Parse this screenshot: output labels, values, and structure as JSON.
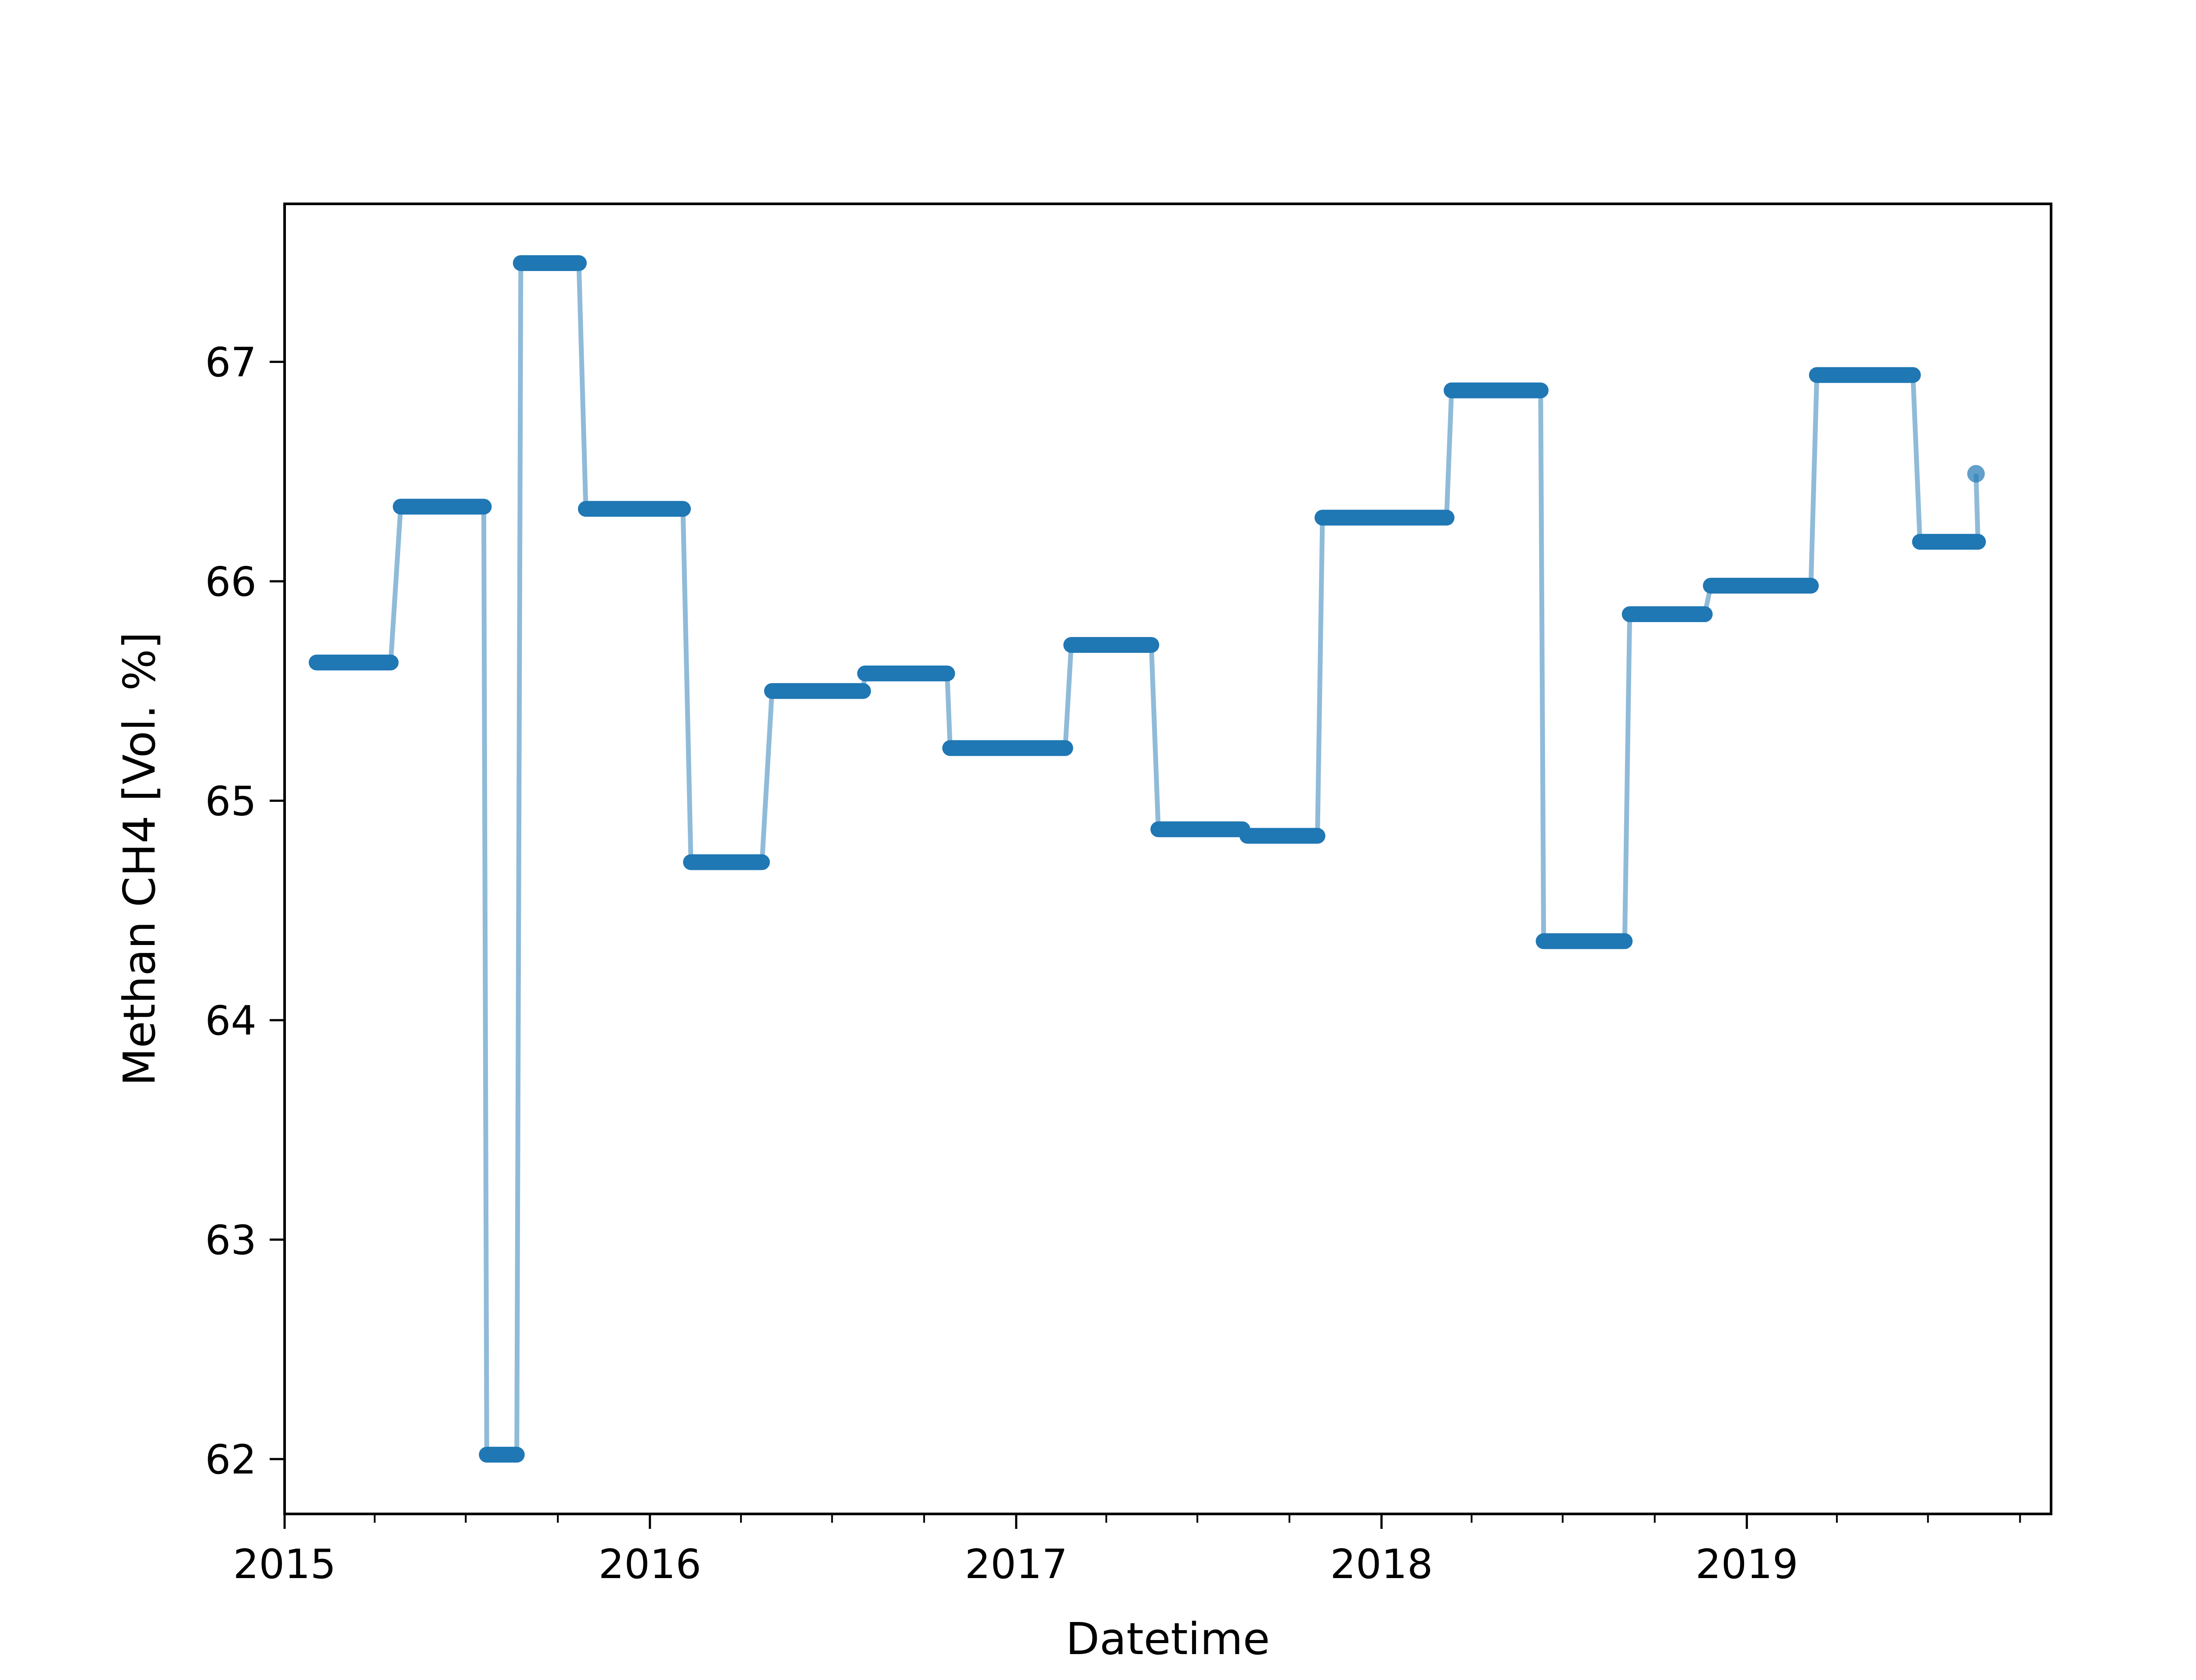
{
  "chart_data": {
    "type": "line",
    "title": "",
    "xlabel": "Datetime",
    "ylabel": "Methan CH4  [Vol. %]",
    "x_axis": {
      "kind": "date",
      "range": [
        "2015-01-01",
        "2019-11-01"
      ],
      "major_ticks": [
        "2015-01-01",
        "2016-01-01",
        "2017-01-01",
        "2018-01-01",
        "2019-01-01"
      ],
      "major_tick_labels": [
        "2015",
        "2016",
        "2017",
        "2018",
        "2019"
      ],
      "minor_ticks": [
        "2015-04-01",
        "2015-07-01",
        "2015-10-01",
        "2016-04-01",
        "2016-07-01",
        "2016-10-01",
        "2017-04-01",
        "2017-07-01",
        "2017-10-01",
        "2018-04-01",
        "2018-07-01",
        "2018-10-01",
        "2019-04-01",
        "2019-07-01",
        "2019-10-01"
      ]
    },
    "y_axis": {
      "range": [
        61.75,
        67.72
      ],
      "ticks": [
        62,
        63,
        64,
        65,
        66,
        67
      ],
      "tick_labels": [
        "62",
        "63",
        "64",
        "65",
        "66",
        "67"
      ]
    },
    "grid": false,
    "legend": "none",
    "colors": {
      "marker": "#1f77b4",
      "line": "#1f77b4",
      "line_opacity": 0.5
    },
    "series": [
      {
        "segments": [
          {
            "start": "2015-02-02",
            "end": "2015-04-17",
            "value": 65.63
          },
          {
            "start": "2015-04-27",
            "end": "2015-07-19",
            "value": 66.34
          },
          {
            "start": "2015-07-22",
            "end": "2015-08-21",
            "value": 62.02
          },
          {
            "start": "2015-08-25",
            "end": "2015-10-22",
            "value": 67.45
          },
          {
            "start": "2015-10-29",
            "end": "2016-02-03",
            "value": 66.33
          },
          {
            "start": "2016-02-11",
            "end": "2016-04-22",
            "value": 64.72
          },
          {
            "start": "2016-05-02",
            "end": "2016-08-01",
            "value": 65.5
          },
          {
            "start": "2016-08-03",
            "end": "2016-10-24",
            "value": 65.58
          },
          {
            "start": "2016-10-27",
            "end": "2017-02-19",
            "value": 65.24
          },
          {
            "start": "2017-02-25",
            "end": "2017-05-16",
            "value": 65.71
          },
          {
            "start": "2017-05-23",
            "end": "2017-08-15",
            "value": 64.87
          },
          {
            "start": "2017-08-20",
            "end": "2017-10-29",
            "value": 64.84
          },
          {
            "start": "2017-11-03",
            "end": "2018-03-07",
            "value": 66.29
          },
          {
            "start": "2018-03-12",
            "end": "2018-06-09",
            "value": 66.87
          },
          {
            "start": "2018-06-12",
            "end": "2018-09-01",
            "value": 64.36
          },
          {
            "start": "2018-09-06",
            "end": "2018-11-20",
            "value": 65.85
          },
          {
            "start": "2018-11-26",
            "end": "2019-03-06",
            "value": 65.98
          },
          {
            "start": "2019-03-12",
            "end": "2019-06-16",
            "value": 66.94
          },
          {
            "start": "2019-06-23",
            "end": "2019-08-20",
            "value": 66.18
          }
        ],
        "final_point": {
          "x": "2019-08-18",
          "value": 66.49
        }
      }
    ]
  }
}
